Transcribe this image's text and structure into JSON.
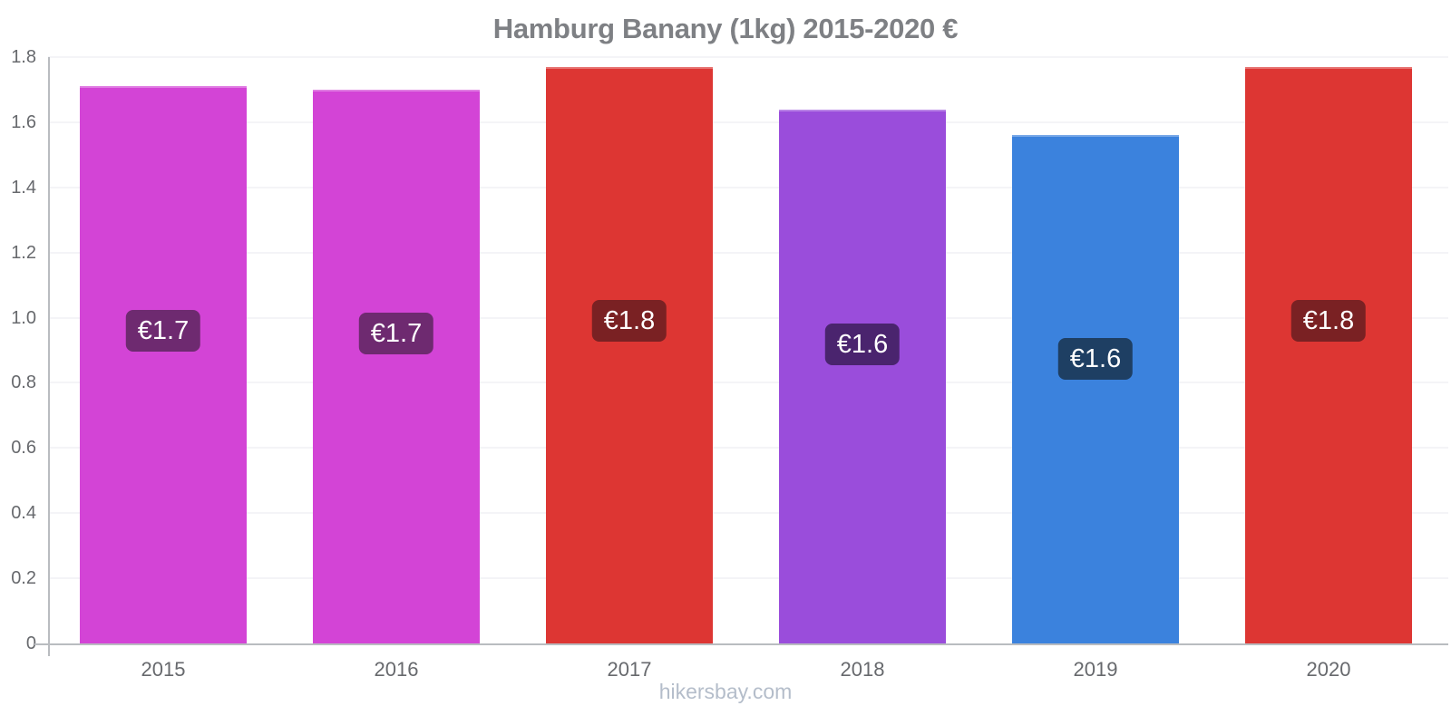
{
  "footer": {
    "link_text": "hikersbay.com"
  },
  "chart_data": {
    "type": "bar",
    "title": "Hamburg Banany (1kg) 2015-2020 €",
    "categories": [
      "2015",
      "2016",
      "2017",
      "2018",
      "2019",
      "2020"
    ],
    "values": [
      1.71,
      1.7,
      1.77,
      1.64,
      1.56,
      1.77
    ],
    "value_labels": [
      "€1.7",
      "€1.7",
      "€1.8",
      "€1.6",
      "€1.6",
      "€1.8"
    ],
    "bar_colors": [
      "#d344d6",
      "#d344d6",
      "#dd3633",
      "#9a4ddb",
      "#3b82dd",
      "#dd3633"
    ],
    "badge_colors": [
      "#6e2a70",
      "#6e2a70",
      "#7a2123",
      "#4a246e",
      "#1e3f63",
      "#7a2123"
    ],
    "xlabel": "",
    "ylabel": "",
    "ylim": [
      0,
      1.8
    ],
    "yticks": [
      0,
      0.2,
      0.4,
      0.6,
      0.8,
      1.0,
      1.2,
      1.4,
      1.6,
      1.8
    ],
    "grid": true,
    "legend": false,
    "colors": {
      "axis_line": "#b9bcc0",
      "gridline": "#f4f4f7",
      "title_text": "#7e8084",
      "tick_text": "#67696d",
      "footer_text": "#b4bdca",
      "badge_text": "#ffffff"
    }
  }
}
